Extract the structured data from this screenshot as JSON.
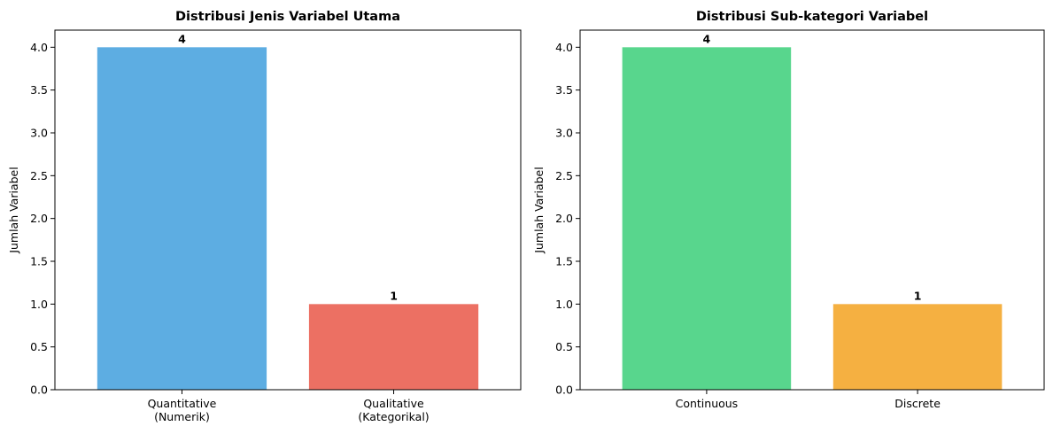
{
  "chart_data": [
    {
      "type": "bar",
      "title": "Distribusi Jenis Variabel Utama",
      "xlabel": "",
      "ylabel": "Jumlah Variabel",
      "categories": [
        "Quantitative\n(Numerik)",
        "Qualitative\n(Kategorikal)"
      ],
      "values": [
        4,
        1
      ],
      "value_labels": [
        "4",
        "1"
      ],
      "colors": [
        "#5dade2",
        "#ec7063"
      ],
      "ylim": [
        0,
        4.2
      ],
      "yticks": [
        "0.0",
        "0.5",
        "1.0",
        "1.5",
        "2.0",
        "2.5",
        "3.0",
        "3.5",
        "4.0"
      ],
      "grid": false
    },
    {
      "type": "bar",
      "title": "Distribusi Sub-kategori Variabel",
      "xlabel": "",
      "ylabel": "Jumlah Variabel",
      "categories": [
        "Continuous",
        "Discrete"
      ],
      "values": [
        4,
        1
      ],
      "value_labels": [
        "4",
        "1"
      ],
      "colors": [
        "#58d68d",
        "#f5b041"
      ],
      "ylim": [
        0,
        4.2
      ],
      "yticks": [
        "0.0",
        "0.5",
        "1.0",
        "1.5",
        "2.0",
        "2.5",
        "3.0",
        "3.5",
        "4.0"
      ],
      "grid": false
    }
  ]
}
